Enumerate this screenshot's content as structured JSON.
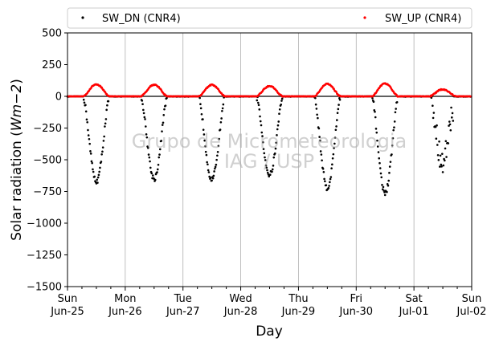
{
  "chart_data": {
    "type": "scatter",
    "xlabel": "Day",
    "ylabel_main": "Solar radiation (",
    "ylabel_unit": "Wm",
    "ylabel_exp": "−2",
    "ylabel_close": ")",
    "ylim": [
      -1500,
      500
    ],
    "xlim": [
      0,
      7
    ],
    "yticks": [
      {
        "value": 500,
        "label": "500"
      },
      {
        "value": 250,
        "label": "250"
      },
      {
        "value": 0,
        "label": "0"
      },
      {
        "value": -250,
        "label": "−250"
      },
      {
        "value": -500,
        "label": "−500"
      },
      {
        "value": -750,
        "label": "−750"
      },
      {
        "value": -1000,
        "label": "−1000"
      },
      {
        "value": -1250,
        "label": "−1250"
      },
      {
        "value": -1500,
        "label": "−1500"
      }
    ],
    "xticks": [
      {
        "value": 0,
        "line1": "Sun",
        "line2": "Jun-25"
      },
      {
        "value": 1,
        "line1": "Mon",
        "line2": "Jun-26"
      },
      {
        "value": 2,
        "line1": "Tue",
        "line2": "Jun-27"
      },
      {
        "value": 3,
        "line1": "Wed",
        "line2": "Jun-28"
      },
      {
        "value": 4,
        "line1": "Thu",
        "line2": "Jun-29"
      },
      {
        "value": 5,
        "line1": "Fri",
        "line2": "Jun-30"
      },
      {
        "value": 6,
        "line1": "Sat",
        "line2": "Jul-01"
      },
      {
        "value": 7,
        "line1": "Sun",
        "line2": "Jul-02"
      }
    ],
    "grid": "vertical",
    "legend_position": "top, above plot",
    "watermark": [
      "Grupo de Micrometeorologia",
      "IAG / USP"
    ],
    "series": [
      {
        "name": "SW_DN (CNR4)",
        "color": "#000000",
        "daily_peaks": [
          -670,
          -650,
          -655,
          -620,
          -720,
          -760,
          -500
        ]
      },
      {
        "name": "SW_UP (CNR4)",
        "color": "#ff0000",
        "daily_peaks": [
          95,
          92,
          90,
          82,
          98,
          100,
          55
        ]
      }
    ]
  }
}
